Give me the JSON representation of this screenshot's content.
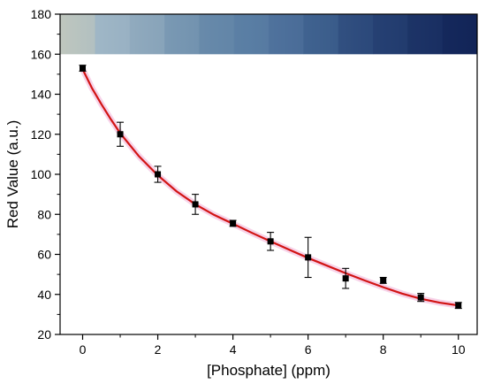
{
  "chart_data": {
    "type": "scatter",
    "xlabel": "[Phosphate] (ppm)",
    "ylabel": "Red Value (a.u.)",
    "xlim": [
      -0.6,
      10.5
    ],
    "ylim": [
      20,
      180
    ],
    "x_ticks": [
      0,
      2,
      4,
      6,
      8,
      10
    ],
    "y_ticks": [
      20,
      40,
      60,
      80,
      100,
      120,
      140,
      160,
      180
    ],
    "x_tick_labels": [
      "0",
      "2",
      "4",
      "6",
      "8",
      "10"
    ],
    "y_tick_labels": [
      "20",
      "40",
      "60",
      "80",
      "100",
      "120",
      "140",
      "160",
      "180"
    ],
    "series": [
      {
        "x": [
          0,
          1,
          2,
          3,
          4,
          5,
          6,
          7,
          8,
          9,
          10
        ],
        "y": [
          153,
          120,
          100,
          85,
          75.5,
          66.5,
          58.5,
          48,
          47,
          38.5,
          34.5
        ],
        "error": [
          1.5,
          6,
          4,
          5,
          1.5,
          4.5,
          10,
          5,
          1.5,
          2,
          1.5
        ],
        "marker": "square",
        "color": "#000000"
      }
    ],
    "fit_curve": {
      "color": "#d21414",
      "band_color": "#f2b6da",
      "x": [
        0,
        0.25,
        0.5,
        0.75,
        1,
        1.5,
        2,
        2.5,
        3,
        3.5,
        4,
        4.5,
        5,
        5.5,
        6,
        6.5,
        7,
        7.5,
        8,
        8.5,
        9,
        9.5,
        10
      ],
      "y": [
        152.5,
        143,
        135,
        127.5,
        120.5,
        109,
        99.5,
        91.5,
        85,
        79.7,
        75.3,
        70.8,
        66.5,
        62.3,
        58.2,
        54.4,
        50.6,
        47,
        43.6,
        40.4,
        37.8,
        35.9,
        34.5
      ]
    },
    "color_strip": {
      "y_range": [
        160,
        180
      ],
      "x_range": [
        -0.6,
        10.5
      ],
      "colors": [
        "#bfc7be",
        "#9fb6c6",
        "#8fa9bd",
        "#7898b2",
        "#6688a9",
        "#5a7ea4",
        "#4d6f9a",
        "#3d5f8d",
        "#2d4a7c",
        "#233d6f",
        "#1a2f63",
        "#122458"
      ]
    }
  }
}
